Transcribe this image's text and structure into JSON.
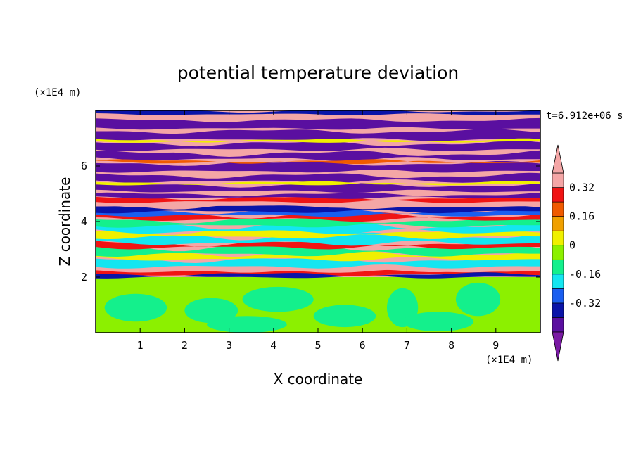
{
  "chart_data": {
    "type": "heatmap",
    "title": "potential temperature deviation",
    "xlabel": "X coordinate",
    "ylabel": "Z coordinate",
    "x_unit": "(×1E4 m)",
    "y_unit": "(×1E4 m)",
    "time_label": "t=6.912e+06 s",
    "xlim": [
      0,
      10
    ],
    "ylim": [
      0,
      8
    ],
    "x_ticks": [
      "1",
      "2",
      "3",
      "4",
      "5",
      "6",
      "7",
      "8",
      "9"
    ],
    "y_ticks": [
      "2",
      "4",
      "6"
    ],
    "colorbar": {
      "levels": [
        -0.48,
        -0.4,
        -0.32,
        -0.24,
        -0.16,
        -0.08,
        0,
        0.08,
        0.16,
        0.24,
        0.32,
        0.4
      ],
      "tick_labels": [
        "0.32",
        "0.16",
        "0",
        "-0.16",
        "-0.32"
      ],
      "colors": [
        "#7a1aa4",
        "#5a0fa0",
        "#0a14a8",
        "#1a5ef0",
        "#14e6f0",
        "#14f08c",
        "#8cf000",
        "#f0f000",
        "#f0a000",
        "#f05a00",
        "#f01414",
        "#f4a6a6"
      ]
    },
    "field_description_bands": [
      {
        "z_range": [
          0,
          2
        ],
        "value_class": "near-zero (green / lime)"
      },
      {
        "z_range": [
          2,
          5
        ],
        "value_class": "mixed small deviations (cyan, green, yellow, red)"
      },
      {
        "z_range": [
          5,
          8
        ],
        "value_class": "alternating strong positive (pink) and strong negative (purple) layers"
      }
    ]
  }
}
